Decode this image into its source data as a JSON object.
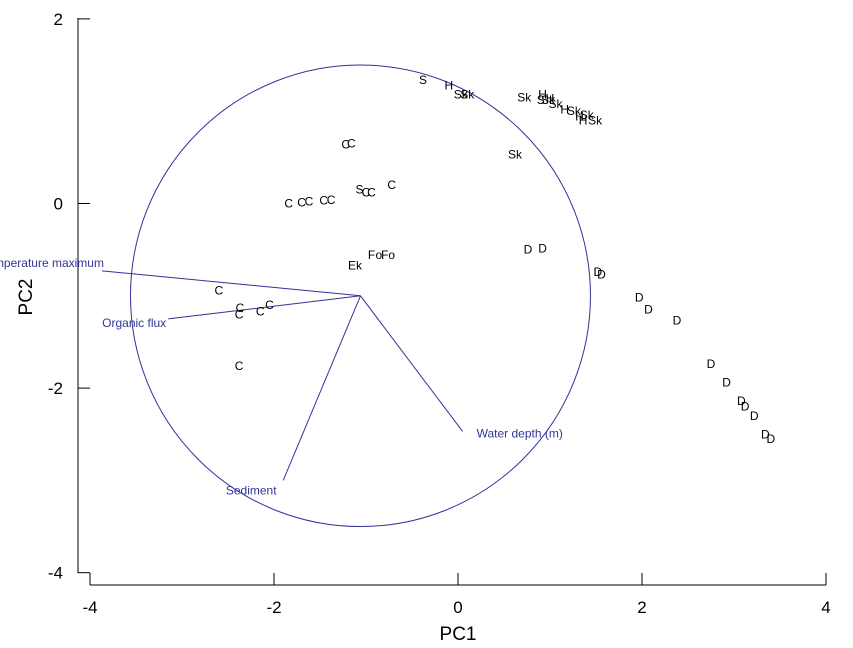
{
  "chart_data": {
    "type": "scatter",
    "xlabel": "PC1",
    "ylabel": "PC2",
    "xlim": [
      -4,
      4
    ],
    "ylim": [
      -4,
      2
    ],
    "xticks": [
      -4,
      -2,
      0,
      2,
      4
    ],
    "yticks": [
      2,
      0,
      -2,
      -4
    ],
    "grid": false,
    "colors": {
      "points": "#000000",
      "vectors": "#333399",
      "axes": "#000000"
    },
    "circle": {
      "center": [
        -1.06,
        -1.0
      ],
      "radius": 2.5
    },
    "vector_origin": [
      -1.06,
      -1.0
    ],
    "vectors": [
      {
        "label": "Temperature maximum",
        "x": -3.87,
        "y": -0.73
      },
      {
        "label": "Organic flux",
        "x": -3.15,
        "y": -1.25
      },
      {
        "label": "Sediment",
        "x": -1.9,
        "y": -3.0
      },
      {
        "label": "Water depth (m)",
        "x": 0.05,
        "y": -2.47
      }
    ],
    "points": [
      {
        "label": "S",
        "x": -0.38,
        "y": 1.34
      },
      {
        "label": "H",
        "x": -0.1,
        "y": 1.28
      },
      {
        "label": "Sk",
        "x": 0.03,
        "y": 1.18
      },
      {
        "label": "Sk",
        "x": 0.1,
        "y": 1.18
      },
      {
        "label": "Sk",
        "x": 0.72,
        "y": 1.15
      },
      {
        "label": "H",
        "x": 0.92,
        "y": 1.18
      },
      {
        "label": "S",
        "x": 0.9,
        "y": 1.12
      },
      {
        "label": "Sk",
        "x": 0.98,
        "y": 1.12
      },
      {
        "label": "H",
        "x": 1.0,
        "y": 1.14
      },
      {
        "label": "Sk",
        "x": 1.06,
        "y": 1.08
      },
      {
        "label": "H",
        "x": 1.16,
        "y": 1.02
      },
      {
        "label": "Sk",
        "x": 1.26,
        "y": 1.0
      },
      {
        "label": "H",
        "x": 1.32,
        "y": 0.94
      },
      {
        "label": "Sk",
        "x": 1.4,
        "y": 0.96
      },
      {
        "label": "H",
        "x": 1.36,
        "y": 0.9
      },
      {
        "label": "Sk",
        "x": 1.49,
        "y": 0.9
      },
      {
        "label": "Sk",
        "x": 0.62,
        "y": 0.53
      },
      {
        "label": "C",
        "x": -1.22,
        "y": 0.64
      },
      {
        "label": "C",
        "x": -1.16,
        "y": 0.65
      },
      {
        "label": "C",
        "x": -0.72,
        "y": 0.2
      },
      {
        "label": "S",
        "x": -1.07,
        "y": 0.15
      },
      {
        "label": "C",
        "x": -1.0,
        "y": 0.12
      },
      {
        "label": "C",
        "x": -0.94,
        "y": 0.12
      },
      {
        "label": "C",
        "x": -1.84,
        "y": 0.0
      },
      {
        "label": "C",
        "x": -1.7,
        "y": 0.01
      },
      {
        "label": "C",
        "x": -1.62,
        "y": 0.02
      },
      {
        "label": "C",
        "x": -1.46,
        "y": 0.03
      },
      {
        "label": "C",
        "x": -1.38,
        "y": 0.04
      },
      {
        "label": "D",
        "x": 0.76,
        "y": -0.5
      },
      {
        "label": "D",
        "x": 0.92,
        "y": -0.49
      },
      {
        "label": "Ek",
        "x": -1.12,
        "y": -0.67
      },
      {
        "label": "F",
        "x": -0.94,
        "y": -0.56
      },
      {
        "label": "o",
        "x": -0.86,
        "y": -0.56
      },
      {
        "label": "Fo",
        "x": -0.76,
        "y": -0.56
      },
      {
        "label": "D",
        "x": 1.52,
        "y": -0.74
      },
      {
        "label": "D",
        "x": 1.56,
        "y": -0.77
      },
      {
        "label": "D",
        "x": 1.97,
        "y": -1.02
      },
      {
        "label": "D",
        "x": 2.07,
        "y": -1.15
      },
      {
        "label": "D",
        "x": 2.38,
        "y": -1.27
      },
      {
        "label": "C",
        "x": -2.6,
        "y": -0.94
      },
      {
        "label": "C",
        "x": -2.37,
        "y": -1.13
      },
      {
        "label": "C",
        "x": -2.38,
        "y": -1.2
      },
      {
        "label": "C",
        "x": -2.05,
        "y": -1.1
      },
      {
        "label": "C",
        "x": -2.15,
        "y": -1.17
      },
      {
        "label": "C",
        "x": -2.38,
        "y": -1.76
      },
      {
        "label": "D",
        "x": 2.75,
        "y": -1.74
      },
      {
        "label": "D",
        "x": 2.92,
        "y": -1.94
      },
      {
        "label": "D",
        "x": 3.08,
        "y": -2.14
      },
      {
        "label": "D",
        "x": 3.12,
        "y": -2.2
      },
      {
        "label": "D",
        "x": 3.22,
        "y": -2.3
      },
      {
        "label": "D",
        "x": 3.34,
        "y": -2.5
      },
      {
        "label": "D",
        "x": 3.4,
        "y": -2.55
      }
    ]
  }
}
